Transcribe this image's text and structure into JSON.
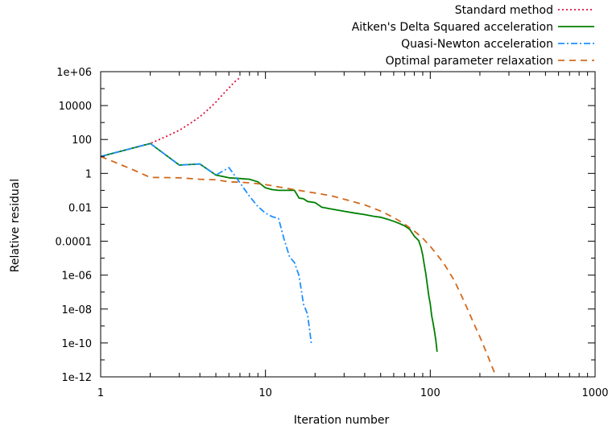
{
  "chart_data": {
    "type": "line",
    "xlabel": "Iteration number",
    "ylabel": "Relative residual",
    "xscale": "log",
    "yscale": "log",
    "xlim": [
      1,
      1000
    ],
    "ylim": [
      1e-12,
      1000000.0
    ],
    "x_ticks": [
      {
        "value": 1,
        "label": "1"
      },
      {
        "value": 10,
        "label": "10"
      },
      {
        "value": 100,
        "label": "100"
      },
      {
        "value": 1000,
        "label": "1000"
      }
    ],
    "y_ticks": [
      {
        "value": 1000000.0,
        "label": "1e+06"
      },
      {
        "value": 10000.0,
        "label": "10000"
      },
      {
        "value": 100,
        "label": "100"
      },
      {
        "value": 1,
        "label": "1"
      },
      {
        "value": 0.01,
        "label": "0.01"
      },
      {
        "value": 0.0001,
        "label": "0.0001"
      },
      {
        "value": 1e-06,
        "label": "1e-06"
      },
      {
        "value": 1e-08,
        "label": "1e-08"
      },
      {
        "value": 1e-10,
        "label": "1e-10"
      },
      {
        "value": 1e-12,
        "label": "1e-12"
      }
    ],
    "legend_position": "top-right",
    "grid": false,
    "series": [
      {
        "name": "Standard method",
        "color": "#e0103c",
        "dash": "dotted",
        "points": [
          [
            1,
            10
          ],
          [
            2,
            58
          ],
          [
            2.5,
            150
          ],
          [
            3,
            350
          ],
          [
            3.5,
            900
          ],
          [
            4,
            2200
          ],
          [
            4.5,
            6000
          ],
          [
            5,
            16000
          ],
          [
            5.5,
            45000
          ],
          [
            6,
            110000
          ],
          [
            6.5,
            250000
          ],
          [
            7,
            450000
          ]
        ]
      },
      {
        "name": "Aitken's Delta Squared acceleration",
        "color": "#008000",
        "dash": "solid",
        "points": [
          [
            1,
            10
          ],
          [
            2,
            58
          ],
          [
            3,
            3.1
          ],
          [
            4,
            3.6
          ],
          [
            5,
            0.8
          ],
          [
            6,
            0.55
          ],
          [
            7,
            0.5
          ],
          [
            8,
            0.45
          ],
          [
            9,
            0.32
          ],
          [
            10,
            0.14
          ],
          [
            11,
            0.11
          ],
          [
            12,
            0.1
          ],
          [
            13,
            0.1
          ],
          [
            14,
            0.1
          ],
          [
            15,
            0.1
          ],
          [
            16,
            0.035
          ],
          [
            17,
            0.032
          ],
          [
            18,
            0.022
          ],
          [
            20,
            0.019
          ],
          [
            22,
            0.01
          ],
          [
            25,
            0.008
          ],
          [
            30,
            0.0058
          ],
          [
            35,
            0.0045
          ],
          [
            40,
            0.0037
          ],
          [
            45,
            0.003
          ],
          [
            50,
            0.0026
          ],
          [
            55,
            0.002
          ],
          [
            60,
            0.0015
          ],
          [
            65,
            0.0011
          ],
          [
            70,
            0.0008
          ],
          [
            75,
            0.0005
          ],
          [
            80,
            0.0002
          ],
          [
            85,
            0.00011
          ],
          [
            88,
            4e-05
          ],
          [
            90,
            1.5e-05
          ],
          [
            92,
            4e-06
          ],
          [
            94,
            1.2e-06
          ],
          [
            96,
            2.5e-07
          ],
          [
            98,
            6e-08
          ],
          [
            100,
            2e-08
          ],
          [
            102,
            4e-09
          ],
          [
            104,
            1.5e-09
          ],
          [
            106,
            5e-10
          ],
          [
            108,
            1.5e-10
          ],
          [
            110,
            3e-11
          ]
        ]
      },
      {
        "name": "Quasi-Newton acceleration",
        "color": "#1e90ff",
        "dash": "dash-dot",
        "points": [
          [
            1,
            10
          ],
          [
            2,
            58
          ],
          [
            3,
            3.1
          ],
          [
            4,
            3.6
          ],
          [
            5,
            0.8
          ],
          [
            6,
            2.2
          ],
          [
            7,
            0.28
          ],
          [
            8,
            0.045
          ],
          [
            9,
            0.011
          ],
          [
            10,
            0.0045
          ],
          [
            11,
            0.0028
          ],
          [
            12,
            0.0022
          ],
          [
            13,
            0.00012
          ],
          [
            14,
            1.2e-05
          ],
          [
            15,
            5.5e-06
          ],
          [
            16,
            9e-07
          ],
          [
            17,
            2e-08
          ],
          [
            18,
            5e-09
          ],
          [
            19,
            9e-11
          ]
        ]
      },
      {
        "name": "Optimal parameter relaxation",
        "color": "#d2691e",
        "dash": "dashed",
        "points": [
          [
            1,
            10
          ],
          [
            1.5,
            2
          ],
          [
            2,
            0.58
          ],
          [
            3,
            0.55
          ],
          [
            4,
            0.45
          ],
          [
            5,
            0.42
          ],
          [
            6,
            0.32
          ],
          [
            7,
            0.3
          ],
          [
            8,
            0.28
          ],
          [
            10,
            0.22
          ],
          [
            12,
            0.16
          ],
          [
            15,
            0.11
          ],
          [
            20,
            0.07
          ],
          [
            25,
            0.048
          ],
          [
            30,
            0.03
          ],
          [
            40,
            0.014
          ],
          [
            50,
            0.006
          ],
          [
            60,
            0.0025
          ],
          [
            70,
            0.001
          ],
          [
            80,
            0.0004
          ],
          [
            90,
            0.00015
          ],
          [
            100,
            5e-05
          ],
          [
            120,
            5.5e-06
          ],
          [
            140,
            4.8e-07
          ],
          [
            160,
            3e-08
          ],
          [
            180,
            2.2e-09
          ],
          [
            200,
            2.3e-10
          ],
          [
            220,
            2.5e-11
          ],
          [
            240,
            3e-12
          ],
          [
            260,
            4.5e-13
          ],
          [
            280,
            8e-14
          ]
        ]
      }
    ]
  }
}
